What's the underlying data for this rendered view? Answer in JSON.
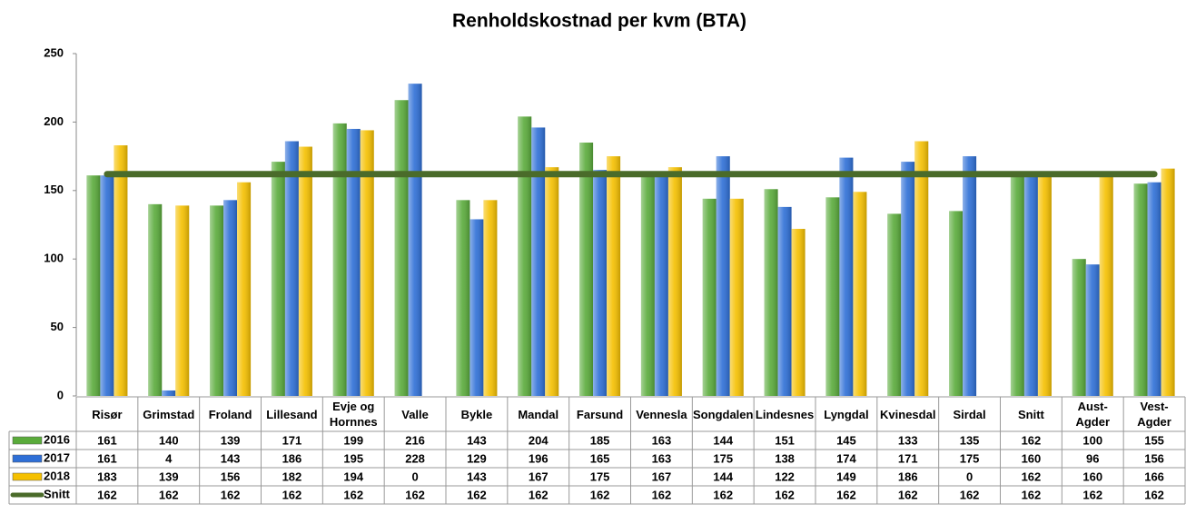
{
  "chart_data": {
    "type": "bar",
    "title": "Renholdskostnad per kvm (BTA)",
    "categories": [
      "Risør",
      "Grimstad",
      "Froland",
      "Lillesand",
      "Evje og Hornnes",
      "Valle",
      "Bykle",
      "Mandal",
      "Farsund",
      "Vennesla",
      "Songdalen",
      "Lindesnes",
      "Lyngdal",
      "Kvinesdal",
      "Sirdal",
      "Snitt",
      "Aust-Agder",
      "Vest-Agder"
    ],
    "series": [
      {
        "name": "2016",
        "type": "bar",
        "color": "#5aab3b",
        "values": [
          161,
          140,
          139,
          171,
          199,
          216,
          143,
          204,
          185,
          163,
          144,
          151,
          145,
          133,
          135,
          162,
          100,
          155
        ]
      },
      {
        "name": "2017",
        "type": "bar",
        "color": "#2e6fd6",
        "values": [
          161,
          4,
          143,
          186,
          195,
          228,
          129,
          196,
          165,
          163,
          175,
          138,
          174,
          171,
          175,
          160,
          96,
          156
        ]
      },
      {
        "name": "2018",
        "type": "bar",
        "color": "#f5c000",
        "values": [
          183,
          139,
          156,
          182,
          194,
          0,
          143,
          167,
          175,
          167,
          144,
          122,
          149,
          186,
          0,
          162,
          160,
          166
        ]
      },
      {
        "name": "Snitt",
        "type": "line",
        "color": "#4a6b2a",
        "values": [
          162,
          162,
          162,
          162,
          162,
          162,
          162,
          162,
          162,
          162,
          162,
          162,
          162,
          162,
          162,
          162,
          162,
          162
        ]
      }
    ],
    "ylim": [
      0,
      250
    ],
    "yticks": [
      0,
      50,
      100,
      150,
      200,
      250
    ],
    "grid": false
  }
}
